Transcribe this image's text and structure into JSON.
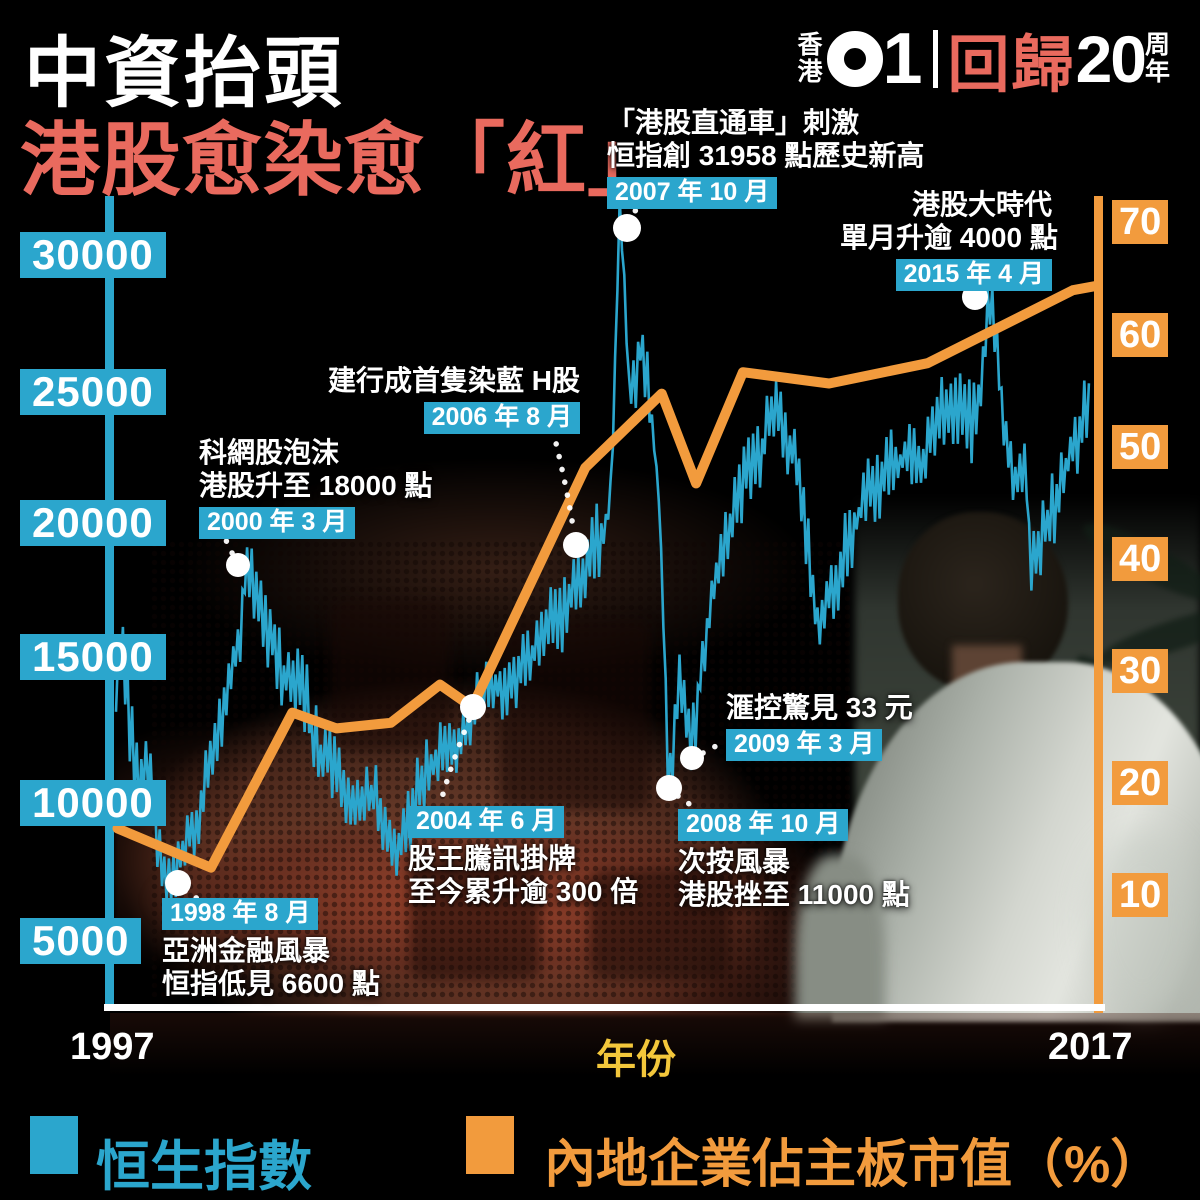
{
  "header": {
    "title_line1": "中資抬頭",
    "title_line2": "港股愈染愈「紅」",
    "logo": {
      "prefix_top": "香",
      "prefix_bottom": "港",
      "brand_digit": "1",
      "campaign": "回歸",
      "campaign_number": "20",
      "suffix_top": "周",
      "suffix_bottom": "年"
    }
  },
  "colors": {
    "hsi_cyan": "#2BA6CD",
    "mainland_orange": "#F29B3D",
    "title_red": "#E96A5E",
    "year_yellow": "#F3C73B"
  },
  "left_axis": {
    "labels": [
      "30000",
      "25000",
      "20000",
      "15000",
      "10000",
      "5000"
    ]
  },
  "right_axis": {
    "labels": [
      "70",
      "60",
      "50",
      "40",
      "30",
      "20",
      "10"
    ]
  },
  "x_axis": {
    "start_year": "1997",
    "axis_title": "年份",
    "end_year": "2017"
  },
  "legend": {
    "hsi_label": "恒生指數",
    "mainland_label": "內地企業佔主板市值（%）"
  },
  "annotations": {
    "y1998": {
      "date": "1998 年 8 月",
      "line1": "亞洲金融風暴",
      "line2": "恒指低見 6600 點"
    },
    "y2000": {
      "line1": "科網股泡沫",
      "line2": "港股升至 18000 點",
      "date": "2000 年 3 月"
    },
    "y2004": {
      "date": "2004 年 6 月",
      "line1": "股王騰訊掛牌",
      "line2": "至今累升逾 300 倍"
    },
    "y2006": {
      "line1": "建行成首隻染藍 H股",
      "date": "2006 年 8 月"
    },
    "y2007": {
      "line1": "「港股直通車」刺激",
      "line2": "恒指創 31958 點歷史新高",
      "date": "2007 年 10 月"
    },
    "y2008": {
      "date": "2008 年 10 月",
      "line1": "次按風暴",
      "line2": "港股挫至 11000 點"
    },
    "y2009": {
      "line1": "滙控驚見 33 元",
      "date": "2009 年 3 月"
    },
    "y2015": {
      "line1": "港股大時代",
      "line2": "單月升逾 4000 點",
      "date": "2015 年 4 月"
    }
  },
  "chart_data": {
    "type": "line",
    "title": "中資抬頭 港股愈染愈「紅」",
    "xlabel": "年份",
    "x_range": [
      1997,
      2017
    ],
    "grid": false,
    "legend_position": "bottom",
    "left_axis": {
      "label": "恒生指數（點）",
      "ticks": [
        30000,
        25000,
        20000,
        15000,
        10000,
        5000
      ]
    },
    "right_axis": {
      "label": "內地企業佔主板市值（%）",
      "ticks": [
        70,
        60,
        50,
        40,
        30,
        20,
        10
      ]
    },
    "series": [
      {
        "name": "恒生指數",
        "axis": "left",
        "color": "#2BA6CD",
        "style": "jagged-line",
        "points": [
          [
            1997.5,
            14000
          ],
          [
            1997.62,
            15800
          ],
          [
            1997.95,
            11000
          ],
          [
            1998.2,
            10600
          ],
          [
            1998.42,
            8300
          ],
          [
            1998.6,
            6600
          ],
          [
            1998.9,
            8200
          ],
          [
            1999.3,
            10000
          ],
          [
            1999.7,
            13000
          ],
          [
            2000.0,
            15500
          ],
          [
            2000.17,
            18300
          ],
          [
            2000.4,
            17000
          ],
          [
            2000.8,
            15300
          ],
          [
            2001.3,
            13800
          ],
          [
            2001.8,
            11500
          ],
          [
            2002.3,
            10600
          ],
          [
            2002.8,
            9800
          ],
          [
            2003.25,
            8300
          ],
          [
            2003.7,
            10900
          ],
          [
            2004.4,
            12000
          ],
          [
            2004.9,
            13800
          ],
          [
            2005.6,
            14800
          ],
          [
            2006.1,
            15800
          ],
          [
            2006.6,
            17200
          ],
          [
            2007.1,
            18800
          ],
          [
            2007.5,
            20500
          ],
          [
            2007.6,
            22500
          ],
          [
            2007.75,
            31958
          ],
          [
            2007.95,
            25000
          ],
          [
            2008.2,
            27000
          ],
          [
            2008.4,
            24000
          ],
          [
            2008.55,
            21000
          ],
          [
            2008.75,
            10676
          ],
          [
            2008.95,
            14500
          ],
          [
            2009.17,
            11921
          ],
          [
            2009.6,
            17500
          ],
          [
            2010.1,
            21000
          ],
          [
            2010.6,
            22500
          ],
          [
            2010.9,
            24700
          ],
          [
            2011.4,
            22000
          ],
          [
            2011.8,
            16200
          ],
          [
            2012.3,
            19500
          ],
          [
            2012.8,
            21300
          ],
          [
            2013.3,
            22800
          ],
          [
            2013.9,
            22300
          ],
          [
            2014.4,
            24600
          ],
          [
            2014.9,
            24000
          ],
          [
            2015.1,
            25500
          ],
          [
            2015.28,
            28500
          ],
          [
            2015.45,
            25500
          ],
          [
            2015.7,
            21500
          ],
          [
            2016.0,
            21800
          ],
          [
            2016.12,
            18300
          ],
          [
            2016.5,
            20500
          ],
          [
            2016.9,
            22800
          ],
          [
            2017.2,
            24000
          ],
          [
            2017.42,
            25800
          ]
        ]
      },
      {
        "name": "內地企業佔主板市值（%）",
        "axis": "right",
        "color": "#F29B3D",
        "style": "thick-line",
        "points": [
          [
            1997.55,
            15.9
          ],
          [
            1999.45,
            12.4
          ],
          [
            2001.1,
            26.2
          ],
          [
            2002.0,
            24.8
          ],
          [
            2003.1,
            25.3
          ],
          [
            2004.1,
            28.7
          ],
          [
            2004.75,
            26.7
          ],
          [
            2007.05,
            48.0
          ],
          [
            2008.6,
            54.6
          ],
          [
            2009.3,
            46.6
          ],
          [
            2010.25,
            56.5
          ],
          [
            2012.0,
            55.5
          ],
          [
            2014.0,
            57.3
          ],
          [
            2016.95,
            63.8
          ],
          [
            2017.45,
            64.2
          ]
        ]
      }
    ],
    "events": [
      {
        "date": "1998-08",
        "label": "亞洲金融風暴 恒指低見6600點"
      },
      {
        "date": "2000-03",
        "label": "科網股泡沫 港股升至18000點"
      },
      {
        "date": "2004-06",
        "label": "股王騰訊掛牌 至今累升逾300倍"
      },
      {
        "date": "2006-08",
        "label": "建行成首隻染藍H股"
      },
      {
        "date": "2007-10",
        "label": "「港股直通車」刺激 恒指創31958點歷史新高"
      },
      {
        "date": "2008-10",
        "label": "次按風暴 港股挫至11000點"
      },
      {
        "date": "2009-03",
        "label": "滙控驚見33元"
      },
      {
        "date": "2015-04",
        "label": "港股大時代 單月升逾4000點"
      }
    ]
  }
}
